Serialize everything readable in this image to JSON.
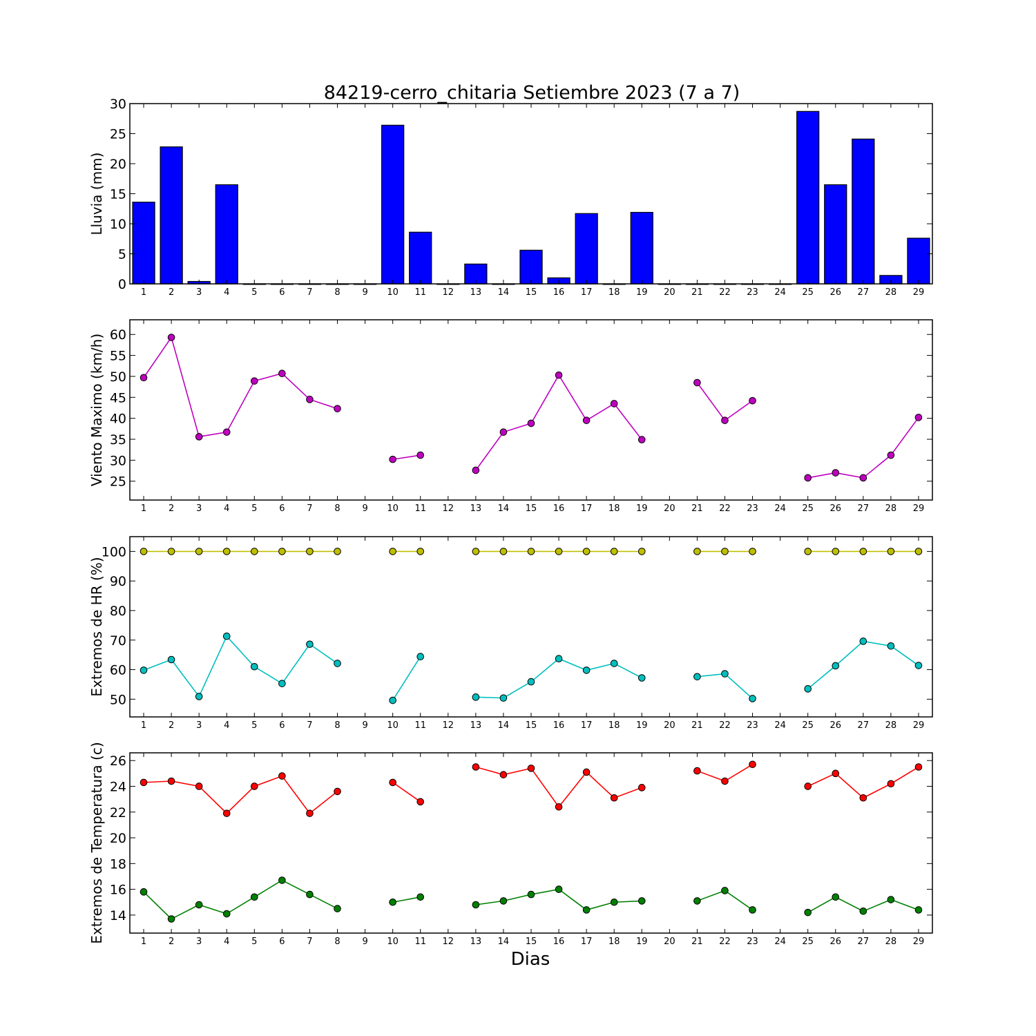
{
  "figure": {
    "title": "84219-cerro_chitaria Setiembre 2023  (7 a 7)",
    "xlabel": "Dias"
  },
  "chart_data": [
    {
      "type": "bar",
      "ylabel": "Lluvia (mm)",
      "ylim": [
        0,
        30
      ],
      "yticks": [
        0,
        5,
        10,
        15,
        20,
        25,
        30
      ],
      "xlim": [
        0.5,
        29.5
      ],
      "xticks": [
        1,
        2,
        3,
        4,
        5,
        6,
        7,
        8,
        9,
        10,
        11,
        12,
        13,
        14,
        15,
        16,
        17,
        18,
        19,
        20,
        21,
        22,
        23,
        24,
        25,
        26,
        27,
        28,
        29
      ],
      "grid": false,
      "categories": [
        1,
        2,
        3,
        4,
        5,
        6,
        7,
        8,
        9,
        10,
        11,
        12,
        13,
        14,
        15,
        16,
        17,
        18,
        19,
        20,
        21,
        22,
        23,
        24,
        25,
        26,
        27,
        28,
        29
      ],
      "series": [
        {
          "color": "#0000ff",
          "values": [
            13.6,
            22.8,
            0.4,
            16.5,
            0,
            0,
            0,
            0,
            0,
            26.4,
            8.6,
            0,
            3.3,
            0,
            5.6,
            1.0,
            11.7,
            0,
            11.9,
            0,
            0,
            0,
            0,
            0,
            28.7,
            16.5,
            24.1,
            1.4,
            7.6
          ]
        }
      ]
    },
    {
      "type": "line",
      "ylabel": "Viento Maximo (km/h)",
      "ylim": [
        20.5,
        63.5
      ],
      "yticks": [
        25,
        30,
        35,
        40,
        45,
        50,
        55,
        60
      ],
      "xlim": [
        0.5,
        29.5
      ],
      "xticks": [
        1,
        2,
        3,
        4,
        5,
        6,
        7,
        8,
        9,
        10,
        11,
        12,
        13,
        14,
        15,
        16,
        17,
        18,
        19,
        20,
        21,
        22,
        23,
        24,
        25,
        26,
        27,
        28,
        29
      ],
      "grid": false,
      "x": [
        1,
        2,
        3,
        4,
        5,
        6,
        7,
        8,
        9,
        10,
        11,
        12,
        13,
        14,
        15,
        16,
        17,
        18,
        19,
        20,
        21,
        22,
        23,
        24,
        25,
        26,
        27,
        28,
        29
      ],
      "series": [
        {
          "color": "#bf00bf",
          "values": [
            49.7,
            59.3,
            35.6,
            36.7,
            48.9,
            50.7,
            44.5,
            42.3,
            null,
            30.2,
            31.2,
            null,
            27.6,
            36.7,
            38.8,
            50.3,
            39.5,
            43.5,
            34.9,
            null,
            48.5,
            39.5,
            44.2,
            null,
            25.8,
            27.0,
            25.8,
            31.2,
            40.2
          ]
        }
      ]
    },
    {
      "type": "line",
      "ylabel": "Extremos de HR (%)",
      "ylim": [
        44,
        105
      ],
      "yticks": [
        50,
        60,
        70,
        80,
        90,
        100
      ],
      "xlim": [
        0.5,
        29.5
      ],
      "xticks": [
        1,
        2,
        3,
        4,
        5,
        6,
        7,
        8,
        9,
        10,
        11,
        12,
        13,
        14,
        15,
        16,
        17,
        18,
        19,
        20,
        21,
        22,
        23,
        24,
        25,
        26,
        27,
        28,
        29
      ],
      "grid": false,
      "x": [
        1,
        2,
        3,
        4,
        5,
        6,
        7,
        8,
        9,
        10,
        11,
        12,
        13,
        14,
        15,
        16,
        17,
        18,
        19,
        20,
        21,
        22,
        23,
        24,
        25,
        26,
        27,
        28,
        29
      ],
      "series": [
        {
          "color": "#bfbf00",
          "values": [
            100,
            100,
            100,
            100,
            100,
            100,
            100,
            100,
            null,
            100,
            100,
            null,
            100,
            100,
            100,
            100,
            100,
            100,
            100,
            null,
            100,
            100,
            100,
            null,
            100,
            100,
            100,
            100,
            100
          ]
        },
        {
          "color": "#00bfbf",
          "values": [
            59.8,
            63.4,
            50.9,
            71.3,
            61.0,
            55.3,
            68.6,
            62.1,
            null,
            49.6,
            64.4,
            null,
            50.7,
            50.4,
            55.9,
            63.7,
            59.8,
            62.1,
            57.2,
            null,
            57.6,
            58.6,
            50.2,
            null,
            53.5,
            61.3,
            69.6,
            68.0,
            61.4
          ]
        }
      ]
    },
    {
      "type": "line",
      "ylabel": "Extremos de Temperatura (c)",
      "ylim": [
        12.6,
        26.6
      ],
      "yticks": [
        14,
        16,
        18,
        20,
        22,
        24,
        26
      ],
      "xlim": [
        0.5,
        29.5
      ],
      "xticks": [
        1,
        2,
        3,
        4,
        5,
        6,
        7,
        8,
        9,
        10,
        11,
        12,
        13,
        14,
        15,
        16,
        17,
        18,
        19,
        20,
        21,
        22,
        23,
        24,
        25,
        26,
        27,
        28,
        29
      ],
      "grid": false,
      "x": [
        1,
        2,
        3,
        4,
        5,
        6,
        7,
        8,
        9,
        10,
        11,
        12,
        13,
        14,
        15,
        16,
        17,
        18,
        19,
        20,
        21,
        22,
        23,
        24,
        25,
        26,
        27,
        28,
        29
      ],
      "series": [
        {
          "color": "#ff0000",
          "values": [
            24.3,
            24.4,
            24.0,
            21.9,
            24.0,
            24.8,
            21.9,
            23.6,
            null,
            24.3,
            22.8,
            null,
            25.5,
            24.9,
            25.4,
            22.4,
            25.1,
            23.1,
            23.9,
            null,
            25.2,
            24.4,
            25.7,
            null,
            24.0,
            25.0,
            23.1,
            24.2,
            25.5
          ]
        },
        {
          "color": "#008000",
          "values": [
            15.8,
            13.7,
            14.8,
            14.1,
            15.4,
            16.7,
            15.6,
            14.5,
            null,
            15.0,
            15.4,
            null,
            14.8,
            15.1,
            15.6,
            16.0,
            14.4,
            15.0,
            15.1,
            null,
            15.1,
            15.9,
            14.4,
            null,
            14.2,
            15.4,
            14.3,
            15.2,
            14.4
          ]
        }
      ]
    }
  ]
}
